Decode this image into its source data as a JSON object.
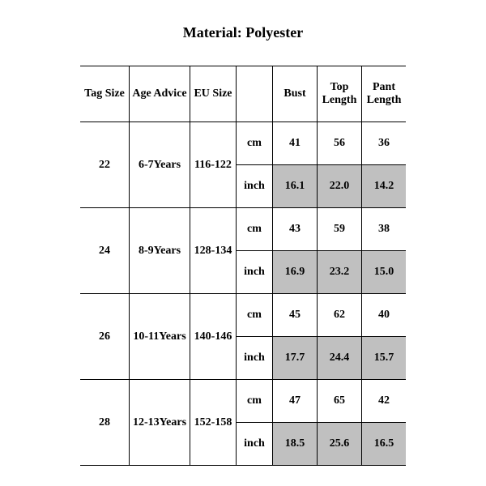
{
  "title": "Material: Polyester",
  "headers": {
    "tag": "Tag Size",
    "age": "Age Advice",
    "eu": "EU Size",
    "unit_blank": "",
    "bust": "Bust",
    "top": "Top Length",
    "pant": "Pant Length"
  },
  "units": {
    "cm": "cm",
    "inch": "inch"
  },
  "rows": [
    {
      "tag": "22",
      "age": "6-7Years",
      "eu": "116-122",
      "cm": {
        "bust": "41",
        "top": "56",
        "pant": "36"
      },
      "inch": {
        "bust": "16.1",
        "top": "22.0",
        "pant": "14.2"
      }
    },
    {
      "tag": "24",
      "age": "8-9Years",
      "eu": "128-134",
      "cm": {
        "bust": "43",
        "top": "59",
        "pant": "38"
      },
      "inch": {
        "bust": "16.9",
        "top": "23.2",
        "pant": "15.0"
      }
    },
    {
      "tag": "26",
      "age": "10-11Years",
      "eu": "140-146",
      "cm": {
        "bust": "45",
        "top": "62",
        "pant": "40"
      },
      "inch": {
        "bust": "17.7",
        "top": "24.4",
        "pant": "15.7"
      }
    },
    {
      "tag": "28",
      "age": "12-13Years",
      "eu": "152-158",
      "cm": {
        "bust": "47",
        "top": "65",
        "pant": "42"
      },
      "inch": {
        "bust": "18.5",
        "top": "25.6",
        "pant": "16.5"
      }
    }
  ],
  "colors": {
    "shade": "#c0c0c0",
    "border": "#000000",
    "bg": "#ffffff"
  }
}
